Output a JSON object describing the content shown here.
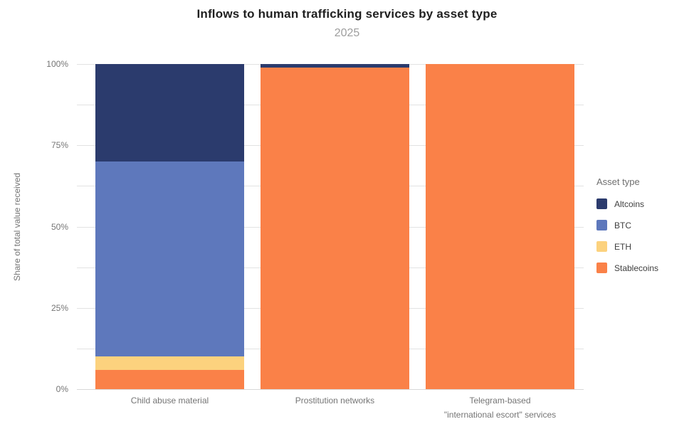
{
  "chart_data": {
    "type": "bar",
    "stacked": true,
    "title": "Inflows to human trafficking services by asset type",
    "subtitle": "2025",
    "ylabel": "Share of total value received",
    "categories": [
      {
        "lines": [
          "Child abuse material"
        ]
      },
      {
        "lines": [
          "Prostitution networks"
        ]
      },
      {
        "lines": [
          "Telegram-based",
          "\"international escort\" services"
        ]
      }
    ],
    "series": [
      {
        "name": "Altcoins",
        "color": "#2b3b6d",
        "values": [
          30,
          1,
          0
        ]
      },
      {
        "name": "BTC",
        "color": "#5e78bc",
        "values": [
          60,
          0,
          0
        ]
      },
      {
        "name": "ETH",
        "color": "#fcd27e",
        "values": [
          4,
          0,
          0
        ]
      },
      {
        "name": "Stablecoins",
        "color": "#fa8148",
        "values": [
          6,
          99,
          100
        ]
      }
    ],
    "ylim": [
      0,
      100
    ],
    "y_tick_labels": [
      "0%",
      "25%",
      "50%",
      "75%",
      "100%"
    ],
    "y_major_step": 25,
    "y_minor_step": 12.5,
    "grid": "horizontal",
    "legend_title": "Asset type",
    "legend_position": "right",
    "background_color": "#ffffff",
    "gridline_color": "#e2e2e2",
    "axis_text_color": "#757575"
  }
}
